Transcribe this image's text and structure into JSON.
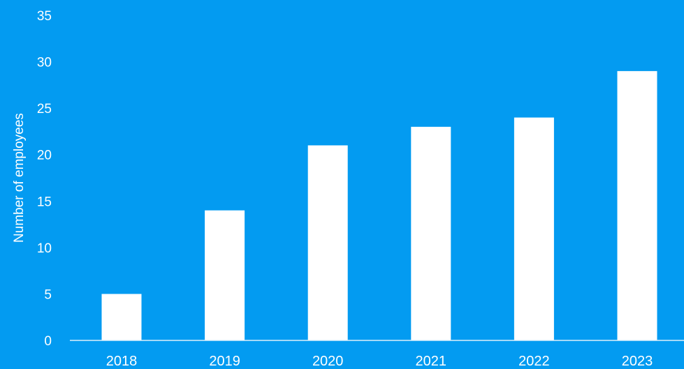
{
  "chart_data": {
    "type": "bar",
    "title": "",
    "xlabel": "",
    "ylabel": "Number of employees",
    "categories": [
      "2018",
      "2019",
      "2020",
      "2021",
      "2022",
      "2023"
    ],
    "values": [
      5,
      14,
      21,
      23,
      24,
      29
    ],
    "ylim": [
      0,
      35
    ],
    "yticks": [
      0,
      5,
      10,
      15,
      20,
      25,
      30,
      35
    ],
    "grid": false,
    "legend": "none",
    "colors": {
      "background": "#039BF1",
      "bar": "#FFFFFF",
      "axis": "#DDEFFB",
      "text": "#FFFFFF"
    }
  }
}
